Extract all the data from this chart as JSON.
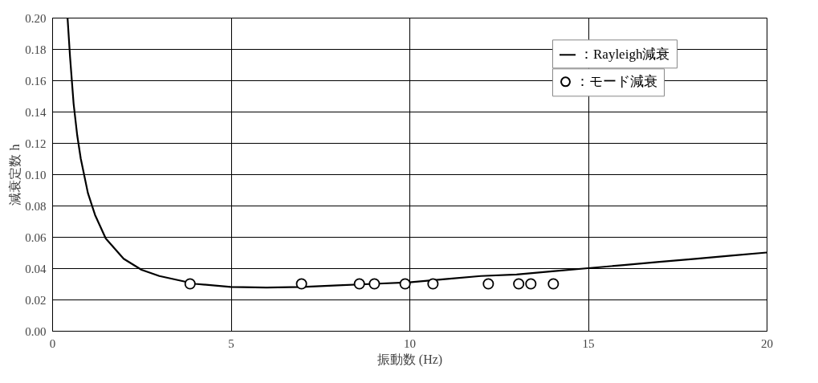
{
  "chart_data": {
    "type": "line",
    "xlabel": "振動数 (Hz)",
    "ylabel": "減衰定数 h",
    "xlim": [
      0,
      20
    ],
    "xticks": [
      0,
      5,
      10,
      15,
      20
    ],
    "ylim": [
      0,
      0.2
    ],
    "yticks": [
      {
        "value": 0,
        "label": "0.00"
      },
      {
        "value": 0.02,
        "label": "0.02"
      },
      {
        "value": 0.04,
        "label": "0.04"
      },
      {
        "value": 0.06,
        "label": "0.06"
      },
      {
        "value": 0.08,
        "label": "0.08"
      },
      {
        "value": 0.1,
        "label": "0.10"
      },
      {
        "value": 0.12,
        "label": "0.12"
      },
      {
        "value": 0.14,
        "label": "0.14"
      },
      {
        "value": 0.16,
        "label": "0.16"
      },
      {
        "value": 0.18,
        "label": "0.18"
      },
      {
        "value": 0.2,
        "label": "0.20"
      }
    ],
    "grid": true,
    "legend": "top right",
    "series": [
      {
        "name": "：Rayleigh減衰",
        "color": "#000000",
        "line_style": "solid",
        "x": [
          0.43,
          0.5,
          0.6,
          0.7,
          0.8,
          1.0,
          1.2,
          1.5,
          2.0,
          2.5,
          3,
          4,
          5,
          6,
          7,
          8,
          9,
          10,
          11,
          12,
          13,
          14,
          15,
          16,
          17,
          18,
          19,
          20
        ],
        "values": [
          0.2,
          0.175,
          0.145,
          0.125,
          0.11,
          0.088,
          0.074,
          0.059,
          0.046,
          0.039,
          0.035,
          0.03,
          0.028,
          0.0276,
          0.028,
          0.029,
          0.03,
          0.031,
          0.033,
          0.035,
          0.036,
          0.038,
          0.04,
          0.042,
          0.044,
          0.046,
          0.048,
          0.05
        ]
      },
      {
        "name": "：モード減衰",
        "type": "scatter",
        "color": "#000000",
        "marker": "circle",
        "x": [
          3.86,
          6.98,
          8.6,
          9.02,
          9.88,
          10.66,
          12.21,
          13.06,
          13.4,
          14.03
        ],
        "values": [
          0.03,
          0.03,
          0.03,
          0.03,
          0.03,
          0.03,
          0.03,
          0.03,
          0.03,
          0.03
        ]
      }
    ]
  }
}
